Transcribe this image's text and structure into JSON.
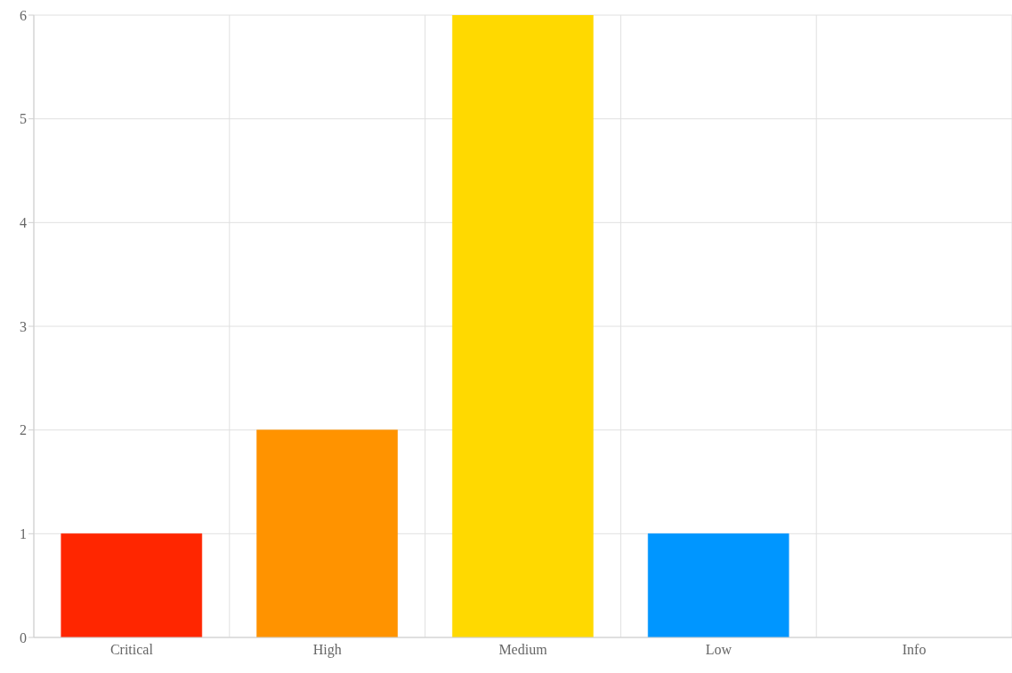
{
  "chart_data": {
    "type": "bar",
    "categories": [
      "Critical",
      "High",
      "Medium",
      "Low",
      "Info"
    ],
    "values": [
      1,
      2,
      6,
      1,
      0
    ],
    "colors": [
      "#ff2600",
      "#ff9300",
      "#ffd900",
      "#0096ff",
      null
    ],
    "ylim": [
      0,
      6
    ],
    "yticks": [
      0,
      1,
      2,
      3,
      4,
      5,
      6
    ],
    "grid": true
  }
}
